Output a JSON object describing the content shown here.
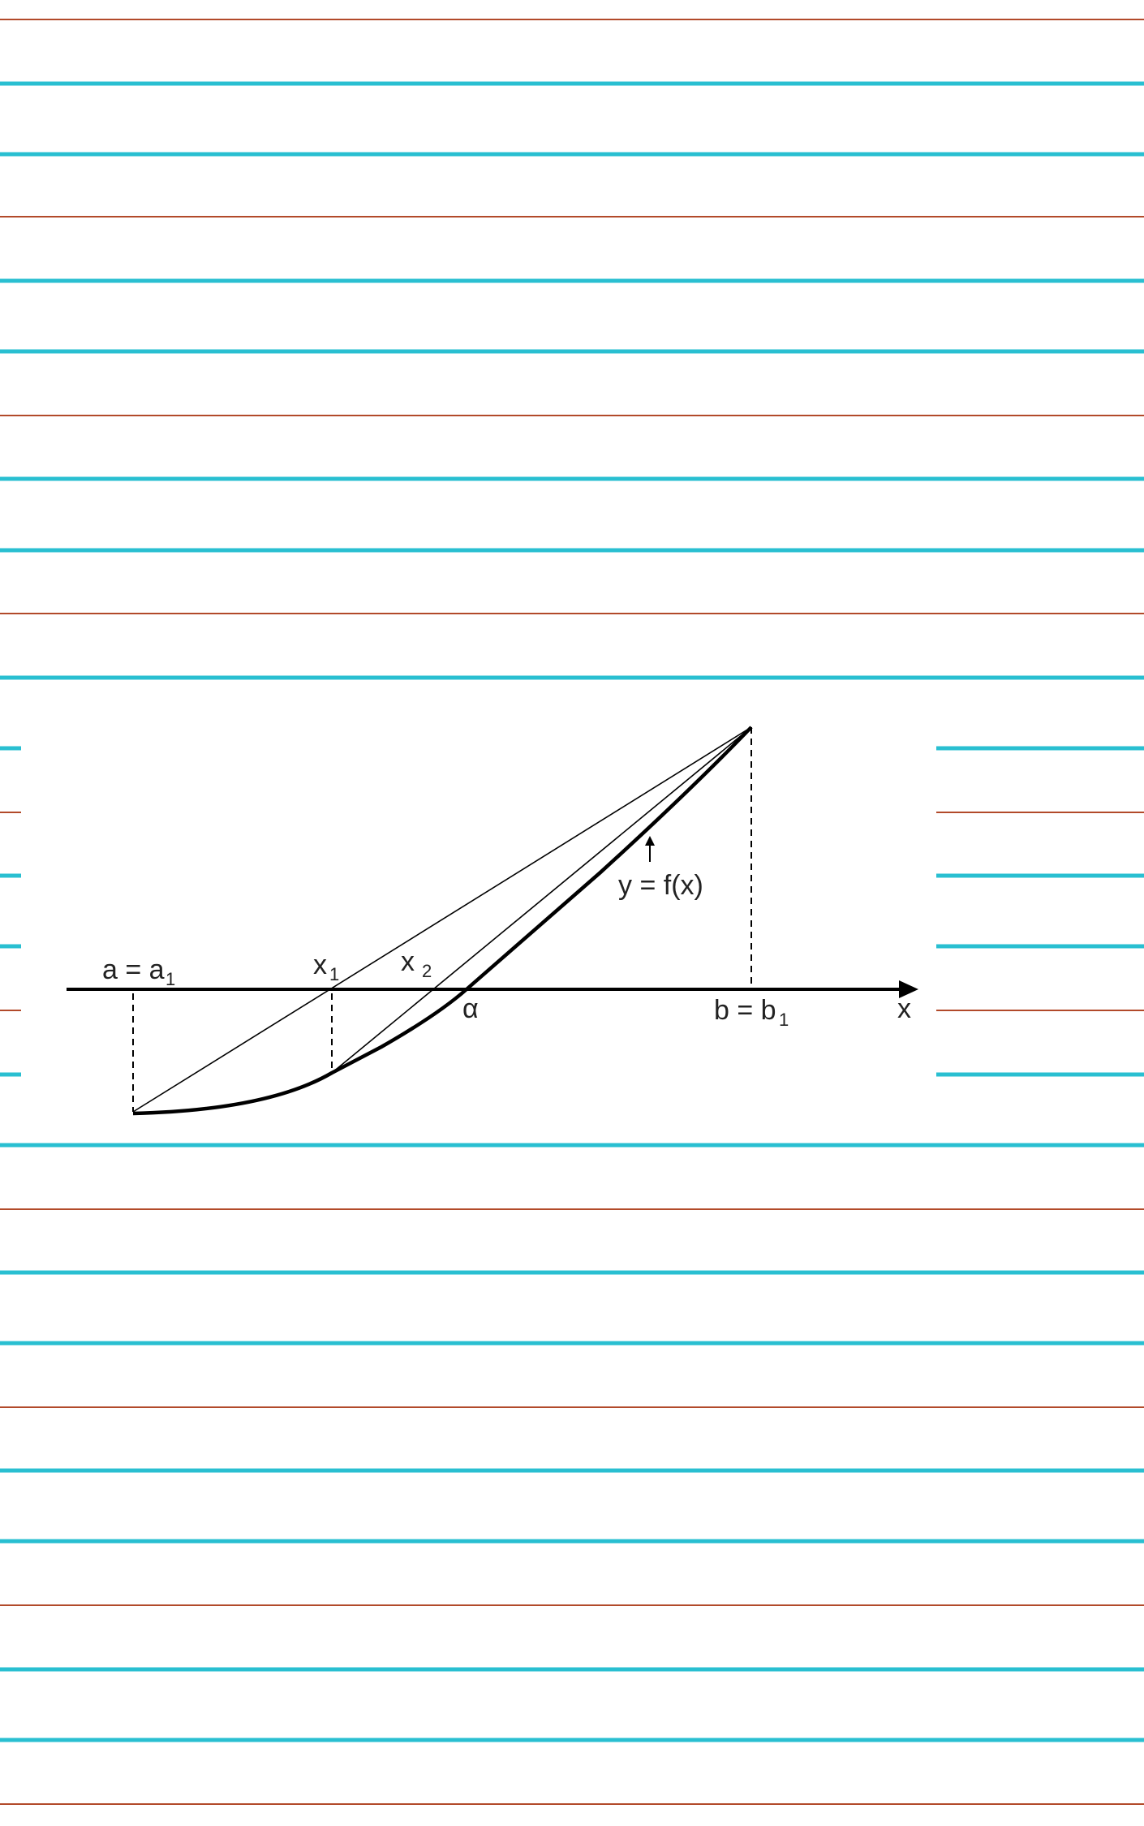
{
  "paper": {
    "blue_line_color": "#29bfd1",
    "red_line_color": "#b24a2a",
    "background": "#ffffff"
  },
  "diagram": {
    "labels": {
      "a": "a = a",
      "a_sub": "1",
      "x1": "x",
      "x1_sub": "1",
      "x2": "x",
      "x2_sub": "2",
      "alpha": "α",
      "b": "b = b",
      "b_sub": "1",
      "x_axis": "x",
      "curve": "y = f(x)"
    }
  }
}
